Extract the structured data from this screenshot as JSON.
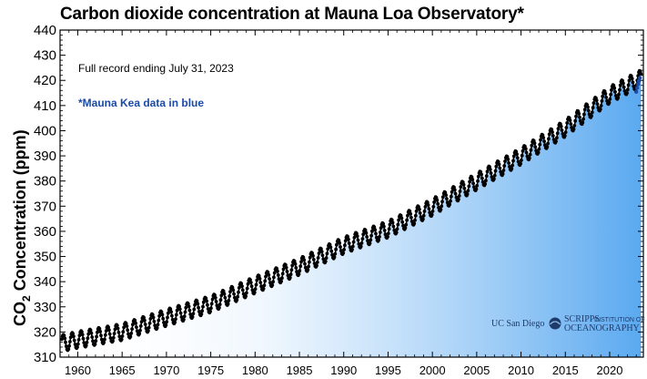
{
  "chart_data": {
    "type": "line",
    "title": "Carbon dioxide concentration at Mauna Loa Observatory*",
    "ylabel_main": "CO",
    "ylabel_sub": "2",
    "ylabel_rest": " Concentration (ppm)",
    "xlim": [
      1958,
      2023.8
    ],
    "ylim": [
      310,
      440
    ],
    "yticks": [
      310,
      320,
      330,
      340,
      350,
      360,
      370,
      380,
      390,
      400,
      410,
      420,
      430,
      440
    ],
    "xticks": [
      1960,
      1965,
      1970,
      1975,
      1980,
      1985,
      1990,
      1995,
      2000,
      2005,
      2010,
      2015,
      2020
    ],
    "annotations": {
      "record": "Full record ending July 31, 2023",
      "mauna_kea": "*Mauna Kea data in blue"
    },
    "logos": {
      "ucsd": "UC San Diego",
      "scripps_top": "SCRIPPS",
      "scripps_small": "INSTITUTION OF",
      "scripps_bottom": "OCEANOGRAPHY"
    },
    "series": [
      {
        "trend": [
          [
            1958.2,
            315.5
          ],
          [
            1960,
            316.9
          ],
          [
            1965,
            320.0
          ],
          [
            1970,
            325.7
          ],
          [
            1975,
            331.1
          ],
          [
            1980,
            338.7
          ],
          [
            1985,
            346.0
          ],
          [
            1990,
            354.4
          ],
          [
            1995,
            360.8
          ],
          [
            2000,
            369.6
          ],
          [
            2005,
            379.8
          ],
          [
            2010,
            389.9
          ],
          [
            2015,
            401.0
          ],
          [
            2020,
            414.2
          ],
          [
            2023.6,
            421.0
          ]
        ],
        "seasonal_amplitude_ppm": 3.3,
        "color": "#000000"
      },
      {
        "name": "Mauna Kea",
        "points": [
          [
            2023.0,
            415.5
          ],
          [
            2023.1,
            417.0
          ],
          [
            2023.2,
            418.5
          ],
          [
            2023.3,
            419.8
          ],
          [
            2023.4,
            421.0
          ]
        ],
        "color": "#1b4aa8"
      }
    ]
  }
}
